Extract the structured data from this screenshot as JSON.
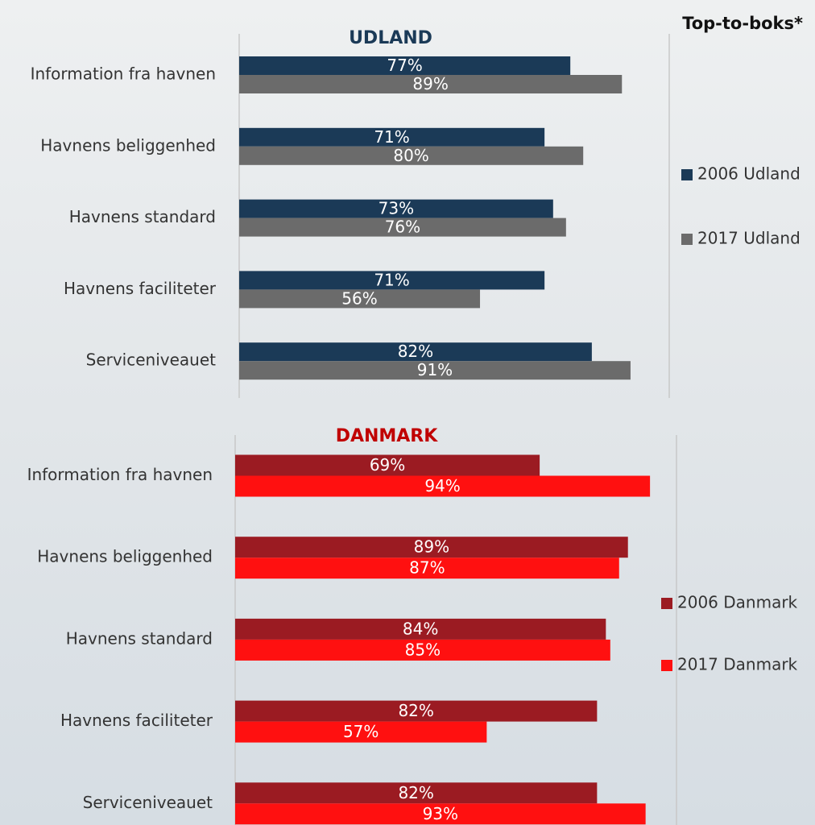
{
  "title": "Top-to-boks*",
  "chart_data": [
    {
      "type": "bar",
      "orientation": "horizontal",
      "title": "UDLAND",
      "title_color": "#1b3a57",
      "categories": [
        "Information fra havnen",
        "Havnens beliggenhed",
        "Havnens standard",
        "Havnens faciliteter",
        "Serviceniveauet"
      ],
      "series": [
        {
          "name": "2006 Udland",
          "color": "#1b3a57",
          "values": [
            77,
            71,
            73,
            71,
            82
          ],
          "value_labels": [
            "77%",
            "71%",
            "73%",
            "71%",
            "82%"
          ]
        },
        {
          "name": "2017 Udland",
          "color": "#6b6b6b",
          "values": [
            89,
            80,
            76,
            56,
            91
          ],
          "value_labels": [
            "89%",
            "80%",
            "76%",
            "56%",
            "91%"
          ]
        }
      ],
      "xlim": [
        0,
        100
      ],
      "legend": "right"
    },
    {
      "type": "bar",
      "orientation": "horizontal",
      "title": "DANMARK",
      "title_color": "#c00000",
      "categories": [
        "Information fra havnen",
        "Havnens beliggenhed",
        "Havnens standard",
        "Havnens faciliteter",
        "Serviceniveauet"
      ],
      "series": [
        {
          "name": "2006 Danmark",
          "color": "#9b1b22",
          "values": [
            69,
            89,
            84,
            82,
            82
          ],
          "value_labels": [
            "69%",
            "89%",
            "84%",
            "82%",
            "82%"
          ]
        },
        {
          "name": "2017 Danmark",
          "color": "#ff1010",
          "values": [
            94,
            87,
            85,
            57,
            93
          ],
          "value_labels": [
            "94%",
            "87%",
            "85%",
            "57%",
            "93%"
          ]
        }
      ],
      "xlim": [
        0,
        100
      ],
      "legend": "right"
    }
  ]
}
